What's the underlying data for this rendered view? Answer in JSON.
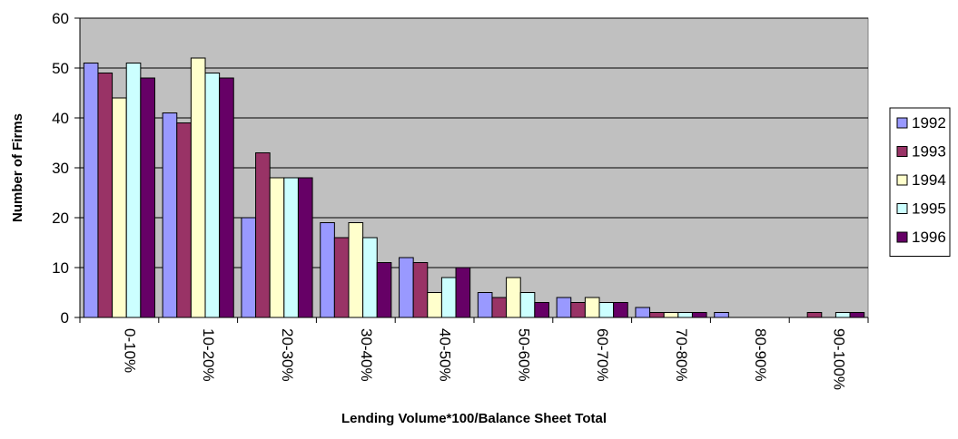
{
  "chart_data": {
    "type": "bar",
    "title": "",
    "xlabel": "Lending Volume*100/Balance Sheet Total",
    "ylabel": "Number of Firms",
    "ylim": [
      0,
      60
    ],
    "yticks": [
      0,
      10,
      20,
      30,
      40,
      50,
      60
    ],
    "grid": true,
    "legend_position": "right",
    "plot_background": "#c0c0c0",
    "categories": [
      "0-10%",
      "10-20%",
      "20-30%",
      "30-40%",
      "40-50%",
      "50-60%",
      "60-70%",
      "70-80%",
      "80-90%",
      "90-100%"
    ],
    "series": [
      {
        "name": "1992",
        "color": "#9999ff",
        "values": [
          51,
          41,
          20,
          19,
          12,
          5,
          4,
          2,
          1,
          0
        ]
      },
      {
        "name": "1993",
        "color": "#993366",
        "values": [
          49,
          39,
          33,
          16,
          11,
          4,
          3,
          1,
          0,
          1
        ]
      },
      {
        "name": "1994",
        "color": "#ffffcc",
        "values": [
          44,
          52,
          28,
          19,
          5,
          8,
          4,
          1,
          0,
          0
        ]
      },
      {
        "name": "1995",
        "color": "#ccffff",
        "values": [
          51,
          49,
          28,
          16,
          8,
          5,
          3,
          1,
          0,
          1
        ]
      },
      {
        "name": "1996",
        "color": "#660066",
        "values": [
          48,
          48,
          28,
          11,
          10,
          3,
          3,
          1,
          0,
          1
        ]
      }
    ]
  }
}
